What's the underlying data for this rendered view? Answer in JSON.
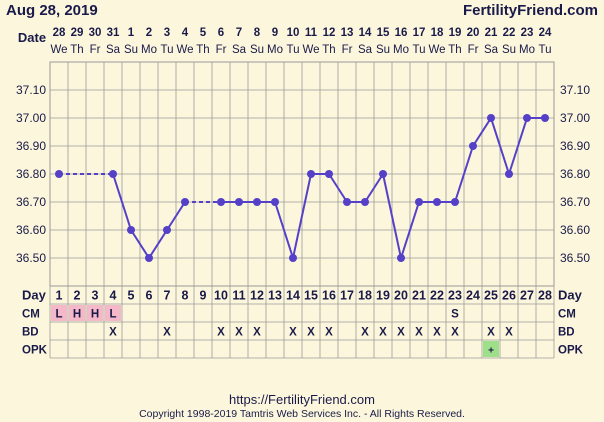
{
  "header": {
    "date": "Aug 28, 2019",
    "brand": "FertilityFriend.com",
    "date_row_label": "Date"
  },
  "footer": {
    "url": "https://FertilityFriend.com",
    "copyright": "Copyright 1998-2019 Tamtris Web Services Inc. - All Rights Reserved."
  },
  "colors": {
    "background": "#fcf7dc",
    "grid": "#9a9a9a",
    "line": "#5540c8",
    "text": "#1a1a4a",
    "cm_fill": "#f4b8c8",
    "opk_fill": "#9ee08a"
  },
  "chart_data": {
    "type": "line",
    "ylim": [
      36.4,
      37.2
    ],
    "yticks": [
      "37.10",
      "37.00",
      "36.90",
      "36.80",
      "36.70",
      "36.60",
      "36.50"
    ],
    "dates": [
      "28",
      "29",
      "30",
      "31",
      "1",
      "2",
      "3",
      "4",
      "5",
      "6",
      "7",
      "8",
      "9",
      "10",
      "11",
      "12",
      "13",
      "14",
      "15",
      "16",
      "17",
      "18",
      "19",
      "20",
      "21",
      "22",
      "23",
      "24"
    ],
    "weekdays": [
      "We",
      "Th",
      "Fr",
      "Sa",
      "Su",
      "Mo",
      "Tu",
      "We",
      "Th",
      "Fr",
      "Sa",
      "Su",
      "Mo",
      "Tu",
      "We",
      "Th",
      "Fr",
      "Sa",
      "Su",
      "Mo",
      "Tu",
      "We",
      "Th",
      "Fr",
      "Sa",
      "Su",
      "Mo",
      "Tu"
    ],
    "cycle_days": [
      "1",
      "2",
      "3",
      "4",
      "5",
      "6",
      "7",
      "8",
      "9",
      "10",
      "11",
      "12",
      "13",
      "14",
      "15",
      "16",
      "17",
      "18",
      "19",
      "20",
      "21",
      "22",
      "23",
      "24",
      "25",
      "26",
      "27",
      "28"
    ],
    "temperatures": [
      36.8,
      null,
      null,
      36.8,
      36.6,
      36.5,
      36.6,
      36.7,
      null,
      36.7,
      36.7,
      36.7,
      36.7,
      36.5,
      36.8,
      36.8,
      36.7,
      36.7,
      36.8,
      36.5,
      36.7,
      36.7,
      36.7,
      36.9,
      37.0,
      36.8,
      37.0,
      37.0
    ],
    "interpolated_gaps": [
      [
        1,
        4
      ],
      [
        8,
        10
      ]
    ],
    "rows": [
      {
        "label": "CM",
        "values": [
          "L",
          "H",
          "H",
          "L",
          "",
          "",
          "",
          "",
          "",
          "",
          "",
          "",
          "",
          "",
          "",
          "",
          "",
          "",
          "",
          "",
          "",
          "",
          "S",
          "",
          "",
          "",
          "",
          ""
        ],
        "highlight_days": [
          1,
          2,
          3,
          4
        ]
      },
      {
        "label": "BD",
        "values": [
          "",
          "",
          "",
          "X",
          "",
          "",
          "X",
          "",
          "",
          "X",
          "X",
          "X",
          "",
          "X",
          "X",
          "X",
          "",
          "X",
          "X",
          "X",
          "X",
          "X",
          "X",
          "",
          "X",
          "X",
          "",
          ""
        ]
      },
      {
        "label": "OPK",
        "values": [
          "",
          "",
          "",
          "",
          "",
          "",
          "",
          "",
          "",
          "",
          "",
          "",
          "",
          "",
          "",
          "",
          "",
          "",
          "",
          "",
          "",
          "",
          "",
          "",
          "+",
          "",
          "",
          ""
        ],
        "highlight_days": [
          25
        ]
      }
    ],
    "row_header_label": "Day"
  }
}
